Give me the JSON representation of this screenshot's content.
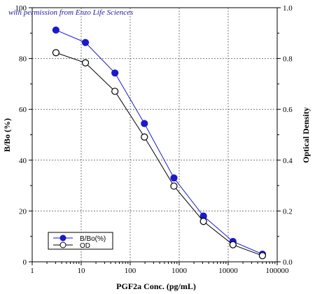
{
  "credit": "with permission from Enzo Life Sciences",
  "chart_data": {
    "type": "line",
    "xlabel": "PGF2a Conc. (pg/mL)",
    "ylabel_left": "B/Bo (%)",
    "ylabel_right": "Optical Density",
    "x_scale": "log",
    "xlim": [
      1,
      100000
    ],
    "ylim_left": [
      0,
      100
    ],
    "ylim_right": [
      0,
      1.0
    ],
    "x_ticks": [
      1,
      10,
      100,
      1000,
      10000,
      100000
    ],
    "x_tick_labels": [
      "1",
      "10",
      "100",
      "1000",
      "10000",
      "100000"
    ],
    "y_left_ticks": [
      0,
      20,
      40,
      60,
      80,
      100
    ],
    "y_left_tick_labels": [
      "0",
      "20",
      "40",
      "60",
      "80",
      "100"
    ],
    "y_right_ticks": [
      0,
      0.2,
      0.4,
      0.6,
      0.8,
      1.0
    ],
    "y_right_tick_labels": [
      "0.0",
      "0.2",
      "0.4",
      "0.6",
      "0.8",
      "1.0"
    ],
    "grid": true,
    "legend_position": "bottom-left",
    "series": [
      {
        "name": "B/Bo(%)",
        "axis": "left",
        "marker": "filled-circle",
        "color": "#1a1acc",
        "x": [
          3.05,
          12.2,
          48.8,
          195,
          781,
          3125,
          12500,
          50000
        ],
        "y": [
          91.2,
          86.3,
          74.3,
          54.4,
          33.0,
          18.0,
          8.0,
          3.0
        ]
      },
      {
        "name": "OD",
        "axis": "right",
        "marker": "open-circle",
        "color": "#000000",
        "x": [
          3.05,
          12.2,
          48.8,
          195,
          781,
          3125,
          12500,
          50000
        ],
        "y": [
          0.823,
          0.783,
          0.671,
          0.491,
          0.298,
          0.159,
          0.067,
          0.024
        ]
      }
    ]
  }
}
